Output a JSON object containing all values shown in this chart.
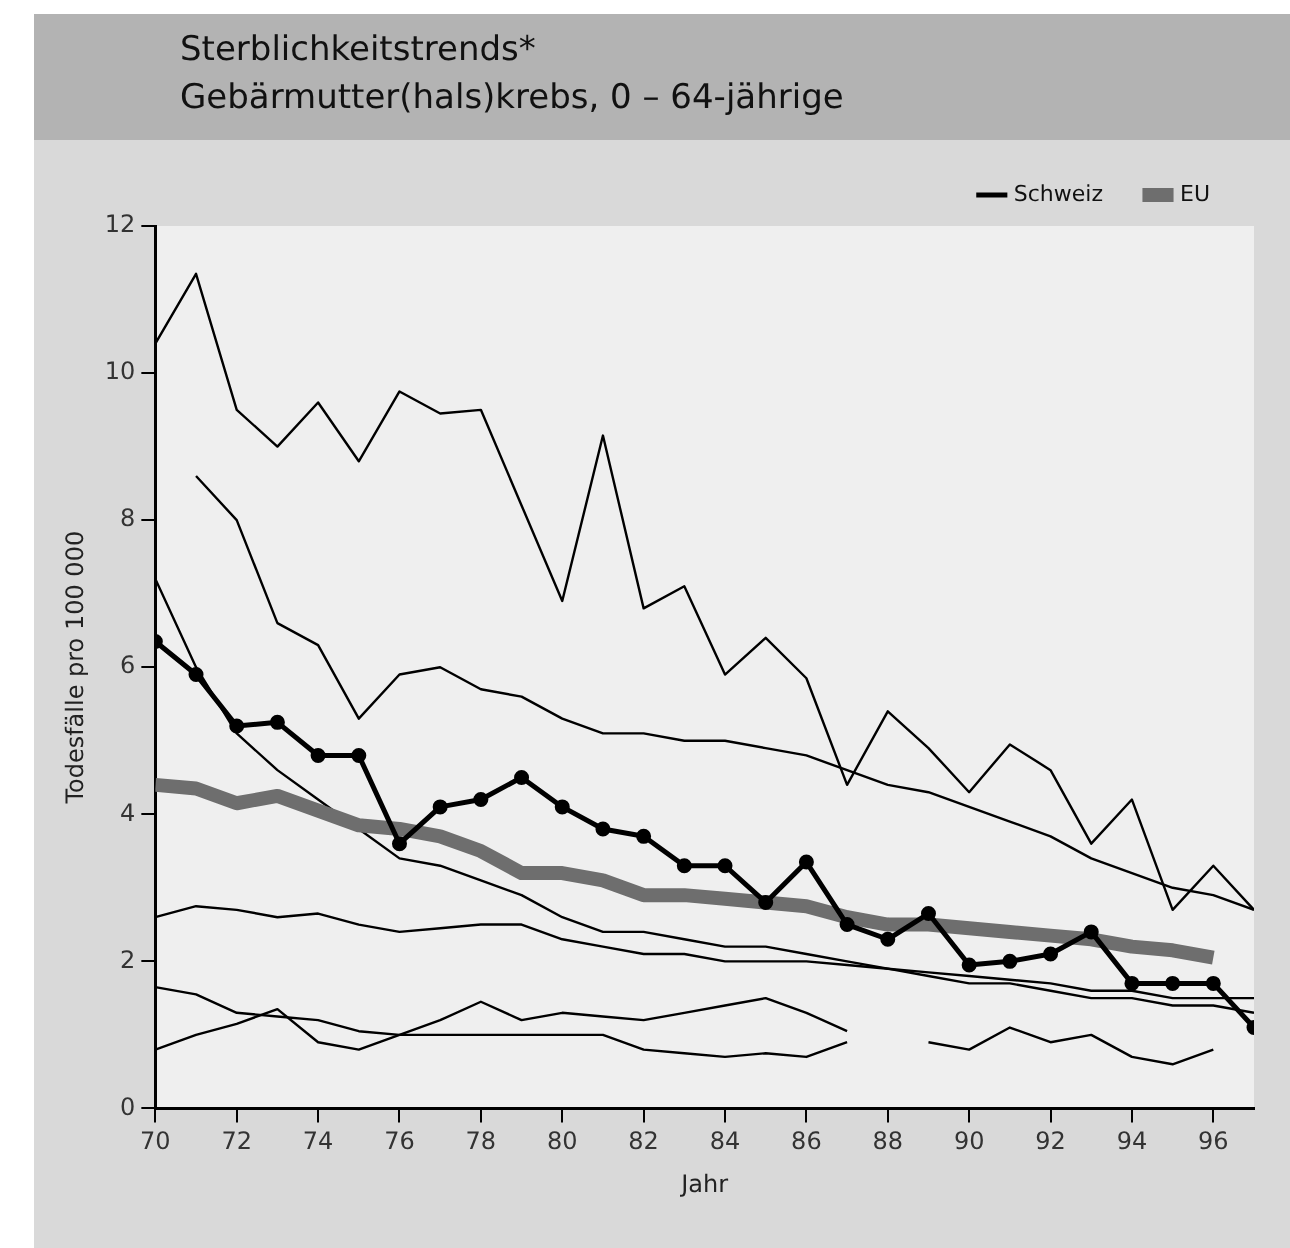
{
  "chart_data": {
    "type": "line",
    "title": "Sterblichkeitstrends*",
    "subtitle": "Gebärmutter(hals)krebs, 0 – 64-jährige",
    "xlabel": "Jahr",
    "ylabel": "Todesfälle pro 100 000",
    "x": [
      70,
      71,
      72,
      73,
      74,
      75,
      76,
      77,
      78,
      79,
      80,
      81,
      82,
      83,
      84,
      85,
      86,
      87,
      88,
      89,
      90,
      91,
      92,
      93,
      94,
      95,
      96,
      97
    ],
    "xlim": [
      70,
      97
    ],
    "xticks": [
      70,
      72,
      74,
      76,
      78,
      80,
      82,
      84,
      86,
      88,
      90,
      92,
      94,
      96
    ],
    "ylim": [
      0,
      12
    ],
    "yticks": [
      0,
      2,
      4,
      6,
      8,
      10,
      12
    ],
    "grid": false,
    "legend": "top right",
    "series": [
      {
        "color": "#000000",
        "marker": "none",
        "values": [
          10.4,
          11.35,
          9.5,
          9.0,
          9.6,
          8.8,
          9.75,
          9.45,
          9.5,
          8.2,
          6.9,
          9.15,
          6.8,
          7.1,
          5.9,
          6.4,
          5.85,
          4.4,
          5.4,
          4.9,
          4.3,
          4.95,
          4.6,
          3.6,
          4.2,
          2.7,
          3.3,
          2.7
        ]
      },
      {
        "color": "#000000",
        "marker": "none",
        "values": [
          null,
          8.6,
          8.0,
          6.6,
          6.3,
          5.3,
          5.9,
          6.0,
          5.7,
          5.6,
          5.3,
          5.1,
          5.1,
          5.0,
          5.0,
          4.9,
          4.8,
          4.6,
          4.4,
          4.3,
          4.1,
          3.9,
          3.7,
          3.4,
          3.2,
          3.0,
          2.9,
          2.7
        ]
      },
      {
        "color": "#000000",
        "marker": "none",
        "values": [
          2.6,
          2.75,
          2.7,
          2.6,
          2.65,
          2.5,
          2.4,
          2.45,
          2.5,
          2.5,
          2.3,
          2.2,
          2.1,
          2.1,
          2.0,
          2.0,
          2.0,
          1.95,
          1.9,
          1.85,
          1.8,
          1.75,
          1.7,
          1.6,
          1.6,
          1.5,
          1.5,
          1.5
        ]
      },
      {
        "color": "#000000",
        "marker": "none",
        "values": [
          1.65,
          1.55,
          1.3,
          1.25,
          1.2,
          1.05,
          1.0,
          1.0,
          1.0,
          1.0,
          1.0,
          1.0,
          0.8,
          0.75,
          0.7,
          0.75,
          0.7,
          0.9,
          null,
          null,
          null,
          null,
          null,
          null,
          null,
          null,
          null,
          null
        ]
      },
      {
        "color": "#000000",
        "marker": "none",
        "values": [
          0.8,
          1.0,
          1.15,
          1.35,
          0.9,
          0.8,
          1.0,
          1.2,
          1.45,
          1.2,
          1.3,
          1.25,
          1.2,
          1.3,
          1.4,
          1.5,
          1.3,
          1.05,
          null,
          null,
          null,
          null,
          null,
          null,
          null,
          null,
          null,
          null
        ]
      },
      {
        "color": "#000000",
        "marker": "none",
        "values": [
          null,
          null,
          null,
          null,
          null,
          null,
          null,
          null,
          null,
          null,
          null,
          null,
          null,
          null,
          null,
          null,
          null,
          null,
          null,
          0.9,
          0.8,
          1.1,
          0.9,
          1.0,
          0.7,
          0.6,
          0.8,
          null
        ]
      },
      {
        "color": "#000000",
        "marker": "none",
        "values": [
          7.2,
          6.0,
          5.1,
          4.6,
          4.2,
          3.8,
          3.4,
          3.3,
          3.1,
          2.9,
          2.6,
          2.4,
          2.4,
          2.3,
          2.2,
          2.2,
          2.1,
          2.0,
          1.9,
          1.8,
          1.7,
          1.7,
          1.6,
          1.5,
          1.5,
          1.4,
          1.4,
          1.3
        ]
      },
      {
        "name": "Schweiz",
        "color": "#000000",
        "marker": "circle",
        "values": [
          6.35,
          5.9,
          5.2,
          5.25,
          4.8,
          4.8,
          3.6,
          4.1,
          4.2,
          4.5,
          4.1,
          3.8,
          3.7,
          3.3,
          3.3,
          2.8,
          3.35,
          2.5,
          2.3,
          2.65,
          1.95,
          2.0,
          2.1,
          2.4,
          1.7,
          1.7,
          1.7,
          1.1
        ]
      },
      {
        "name": "EU",
        "color": "#6e6e6e",
        "marker": "none",
        "values": [
          4.4,
          4.35,
          4.15,
          4.25,
          4.05,
          3.85,
          3.8,
          3.7,
          3.5,
          3.2,
          3.2,
          3.1,
          2.9,
          2.9,
          2.85,
          2.8,
          2.75,
          2.6,
          2.5,
          2.5,
          2.45,
          2.4,
          2.35,
          2.3,
          2.2,
          2.15,
          2.05,
          null
        ]
      }
    ]
  }
}
